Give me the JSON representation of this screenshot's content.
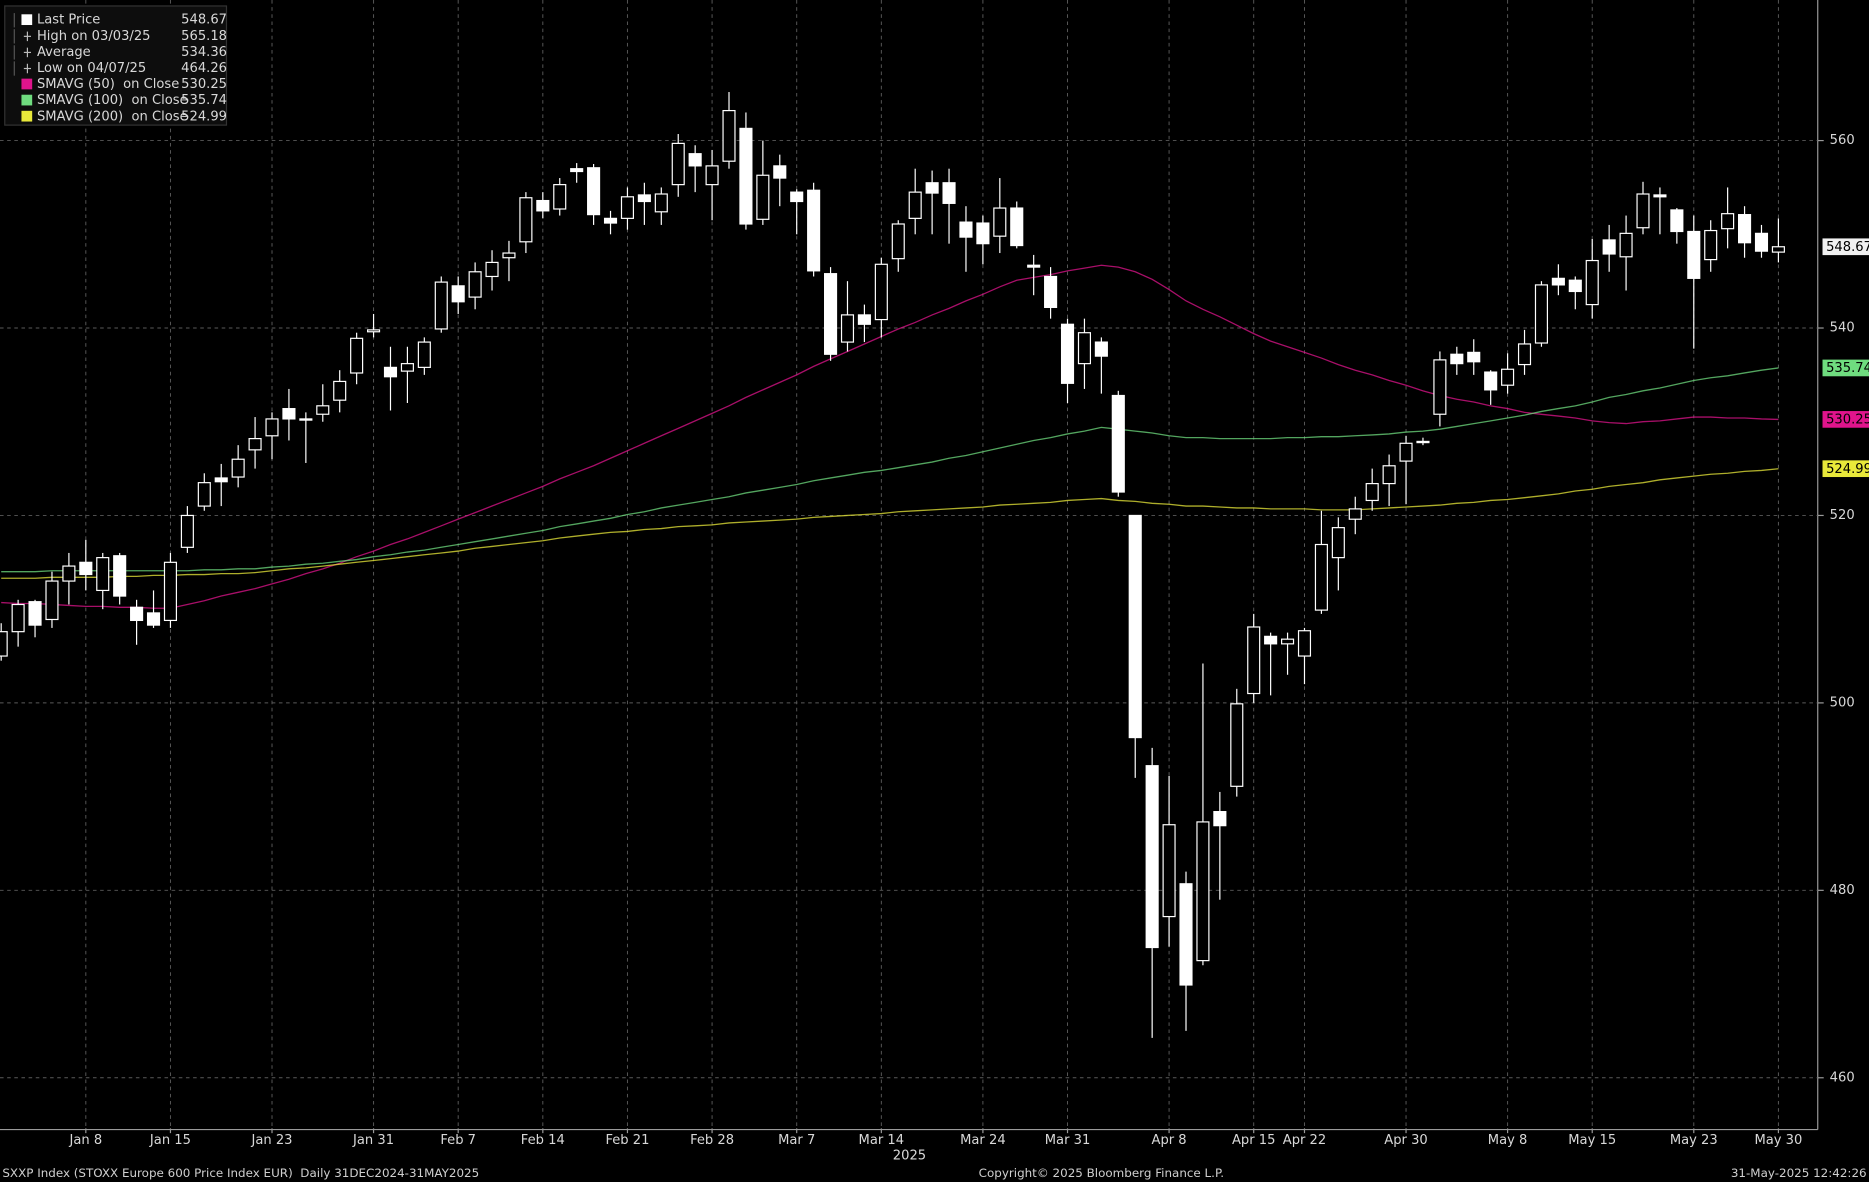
{
  "chart_data": {
    "type": "candlestick",
    "categories": [
      null,
      null,
      null,
      null,
      null,
      "Jan 8",
      null,
      null,
      null,
      null,
      "Jan 15",
      null,
      null,
      null,
      null,
      null,
      "Jan 23",
      null,
      null,
      null,
      null,
      null,
      "Jan 31",
      null,
      null,
      null,
      null,
      "Feb 7",
      null,
      null,
      null,
      null,
      "Feb 14",
      null,
      null,
      null,
      null,
      "Feb 21",
      null,
      null,
      null,
      null,
      "Feb 28",
      null,
      null,
      null,
      null,
      "Mar 7",
      null,
      null,
      null,
      null,
      "Mar 14",
      null,
      null,
      null,
      null,
      null,
      "Mar 24",
      null,
      null,
      null,
      null,
      "Mar 31",
      null,
      null,
      null,
      null,
      null,
      "Apr 8",
      null,
      null,
      null,
      null,
      "Apr 15",
      null,
      null,
      "Apr 22",
      null,
      null,
      null,
      null,
      null,
      "Apr 30",
      null,
      null,
      null,
      null,
      null,
      "May 8",
      null,
      null,
      null,
      null,
      "May 15",
      null,
      null,
      null,
      null,
      null,
      "May 23",
      null,
      null,
      null,
      null,
      "May 30"
    ],
    "open": [
      505.0,
      507.6,
      510.8,
      508.9,
      513.0,
      515.0,
      512.0,
      515.7,
      510.2,
      509.6,
      508.8,
      516.6,
      521.0,
      524.0,
      524.1,
      527.0,
      528.5,
      531.4,
      530.3,
      530.8,
      532.3,
      535.2,
      539.6,
      535.8,
      535.4,
      535.8,
      539.9,
      544.5,
      543.3,
      545.5,
      547.5,
      549.2,
      553.6,
      552.7,
      557.0,
      557.1,
      551.7,
      551.7,
      554.2,
      552.4,
      555.3,
      558.6,
      555.3,
      557.8,
      561.3,
      551.6,
      557.3,
      554.5,
      554.7,
      545.8,
      538.5,
      541.4,
      540.9,
      547.4,
      551.7,
      555.5,
      555.5,
      551.3,
      551.2,
      549.8,
      552.8,
      546.7,
      545.5,
      540.4,
      536.2,
      538.5,
      532.8,
      520.0,
      493.3,
      477.2,
      480.7,
      472.5,
      488.4,
      491.1,
      501.0,
      507.1,
      506.3,
      505.0,
      509.9,
      515.5,
      519.6,
      521.6,
      523.4,
      525.8,
      527.8,
      530.8,
      537.2,
      537.4,
      535.3,
      533.9,
      536.1,
      538.4,
      545.3,
      545.1,
      542.5,
      549.4,
      547.6,
      550.7,
      554.2,
      552.6,
      550.3,
      547.3,
      550.6,
      552.1,
      550.1,
      548.1
    ],
    "high": [
      508.5,
      511.0,
      511.0,
      514.0,
      516.0,
      517.4,
      516.0,
      516.0,
      511.0,
      512.0,
      516.0,
      521.0,
      524.5,
      525.5,
      527.5,
      530.5,
      531.0,
      533.5,
      531.0,
      534.0,
      535.5,
      539.5,
      541.5,
      538.0,
      538.0,
      539.0,
      545.5,
      545.5,
      547.0,
      548.3,
      549.3,
      554.5,
      554.5,
      556.0,
      557.6,
      557.5,
      552.5,
      555.0,
      555.5,
      555.0,
      560.7,
      559.5,
      559.0,
      565.18,
      563.0,
      560.0,
      558.5,
      554.8,
      555.5,
      546.5,
      545.0,
      542.5,
      547.5,
      551.5,
      557.0,
      556.8,
      557.0,
      553.0,
      552.0,
      556.0,
      553.5,
      547.8,
      546.5,
      541.0,
      541.0,
      539.0,
      533.3,
      520.0,
      495.2,
      492.2,
      482.0,
      504.2,
      490.5,
      501.5,
      509.5,
      507.5,
      507.5,
      508.0,
      520.5,
      519.8,
      522.0,
      525.0,
      526.5,
      528.5,
      528.3,
      537.5,
      538.0,
      538.8,
      535.5,
      537.3,
      539.8,
      545.0,
      546.8,
      545.5,
      549.5,
      551.0,
      552.0,
      555.6,
      555.0,
      552.8,
      552.0,
      551.5,
      555.0,
      553.0,
      551.0,
      551.7
    ],
    "low": [
      504.5,
      506.0,
      507.0,
      508.0,
      510.5,
      512.0,
      510.0,
      510.5,
      506.2,
      508.0,
      508.0,
      516.0,
      520.5,
      521.0,
      523.0,
      525.0,
      526.0,
      528.0,
      525.6,
      530.0,
      531.0,
      534.0,
      539.0,
      531.2,
      532.0,
      535.0,
      539.5,
      541.5,
      542.0,
      544.0,
      545.0,
      548.0,
      551.7,
      552.0,
      555.5,
      551.0,
      550.0,
      550.5,
      551.0,
      551.0,
      554.0,
      554.5,
      551.5,
      557.0,
      550.5,
      551.0,
      553.0,
      550.0,
      545.5,
      536.5,
      537.5,
      538.5,
      539.0,
      546.0,
      550.0,
      550.0,
      549.0,
      546.0,
      546.8,
      548.0,
      548.5,
      543.5,
      541.0,
      532.0,
      533.5,
      533.0,
      522.0,
      492.0,
      464.26,
      474.0,
      465.0,
      472.0,
      479.0,
      490.0,
      500.0,
      500.8,
      503.0,
      502.0,
      509.5,
      512.0,
      518.0,
      520.5,
      521.0,
      521.2,
      527.5,
      529.5,
      535.0,
      535.0,
      531.8,
      533.0,
      535.0,
      538.0,
      543.5,
      542.0,
      541.0,
      546.0,
      544.0,
      550.0,
      550.0,
      549.0,
      537.8,
      546.0,
      548.5,
      547.5,
      547.5,
      547.0
    ],
    "close": [
      507.6,
      510.5,
      508.3,
      513.0,
      514.6,
      513.7,
      515.5,
      511.4,
      508.8,
      508.3,
      515.0,
      520.0,
      523.5,
      523.6,
      526.0,
      528.2,
      530.3,
      530.3,
      530.2,
      531.7,
      534.3,
      538.9,
      539.8,
      534.8,
      536.2,
      538.5,
      544.9,
      542.8,
      546.0,
      547.0,
      548.0,
      553.9,
      552.5,
      555.3,
      556.7,
      552.1,
      551.2,
      554.0,
      553.5,
      554.3,
      559.7,
      557.3,
      557.3,
      563.2,
      551.1,
      556.3,
      556.0,
      553.5,
      546.1,
      537.2,
      541.4,
      540.4,
      546.8,
      551.1,
      554.5,
      554.4,
      553.3,
      549.7,
      549.0,
      552.8,
      548.8,
      546.5,
      542.2,
      534.1,
      539.5,
      537.0,
      522.5,
      496.3,
      473.9,
      487.0,
      469.9,
      487.3,
      486.9,
      499.9,
      508.1,
      506.3,
      506.8,
      507.7,
      516.9,
      518.7,
      520.7,
      523.4,
      525.3,
      527.7,
      527.9,
      536.6,
      536.2,
      536.4,
      533.4,
      535.6,
      538.3,
      544.6,
      544.6,
      543.9,
      547.2,
      547.9,
      550.1,
      554.3,
      554.0,
      550.3,
      545.3,
      550.4,
      552.2,
      549.1,
      548.2,
      548.67
    ],
    "candle_color": "#ffffff",
    "series": [
      {
        "name": "SMAVG (50)  on Close",
        "color": "#e0148c",
        "values": [
          510.7,
          510.6,
          510.6,
          510.5,
          510.4,
          510.3,
          510.3,
          510.2,
          510.2,
          510.1,
          510.1,
          510.5,
          510.9,
          511.4,
          511.8,
          512.2,
          512.7,
          513.2,
          513.8,
          514.3,
          514.9,
          515.6,
          516.2,
          516.9,
          517.5,
          518.2,
          518.9,
          519.6,
          520.3,
          521.0,
          521.7,
          522.4,
          523.1,
          523.9,
          524.6,
          525.3,
          526.1,
          526.9,
          527.7,
          528.5,
          529.3,
          530.1,
          530.9,
          531.7,
          532.6,
          533.4,
          534.2,
          535.0,
          535.9,
          536.7,
          537.5,
          538.3,
          539.1,
          539.9,
          540.6,
          541.4,
          542.1,
          542.9,
          543.6,
          544.4,
          545.1,
          545.4,
          545.7,
          546.1,
          546.4,
          546.7,
          546.5,
          546.0,
          545.2,
          544.1,
          542.9,
          542.0,
          541.2,
          540.3,
          539.4,
          538.6,
          538.0,
          537.4,
          536.8,
          536.1,
          535.5,
          535.0,
          534.4,
          533.9,
          533.3,
          532.8,
          532.4,
          532.1,
          531.7,
          531.4,
          531.0,
          530.8,
          530.6,
          530.4,
          530.1,
          529.9,
          529.8,
          530.0,
          530.1,
          530.3,
          530.5,
          530.5,
          530.4,
          530.4,
          530.3,
          530.25
        ]
      },
      {
        "name": "SMAVG (100)  on Close",
        "color": "#6fdc7f",
        "values": [
          514.0,
          514.0,
          514.0,
          514.1,
          514.1,
          514.1,
          514.1,
          514.1,
          514.1,
          514.1,
          514.1,
          514.1,
          514.2,
          514.2,
          514.3,
          514.3,
          514.5,
          514.6,
          514.8,
          514.9,
          515.1,
          515.3,
          515.6,
          515.8,
          516.1,
          516.3,
          516.6,
          516.9,
          517.2,
          517.5,
          517.8,
          518.1,
          518.4,
          518.8,
          519.1,
          519.4,
          519.7,
          520.1,
          520.4,
          520.8,
          521.1,
          521.4,
          521.7,
          522.0,
          522.4,
          522.7,
          523.0,
          523.3,
          523.7,
          524.0,
          524.3,
          524.6,
          524.8,
          525.1,
          525.4,
          525.7,
          526.1,
          526.4,
          526.8,
          527.2,
          527.6,
          528.0,
          528.3,
          528.7,
          529.0,
          529.4,
          529.2,
          529.0,
          528.8,
          528.5,
          528.3,
          528.3,
          528.2,
          528.2,
          528.2,
          528.2,
          528.3,
          528.3,
          528.4,
          528.4,
          528.5,
          528.6,
          528.7,
          528.9,
          529.0,
          529.2,
          529.5,
          529.8,
          530.1,
          530.4,
          530.7,
          531.1,
          531.4,
          531.7,
          532.1,
          532.6,
          532.9,
          533.3,
          533.6,
          534.0,
          534.4,
          534.7,
          534.9,
          535.2,
          535.5,
          535.74
        ]
      },
      {
        "name": "SMAVG (200)  on Close",
        "color": "#e8e83a",
        "values": [
          513.3,
          513.3,
          513.3,
          513.4,
          513.4,
          513.4,
          513.4,
          513.5,
          513.5,
          513.6,
          513.6,
          513.7,
          513.7,
          513.8,
          513.8,
          513.9,
          514.1,
          514.3,
          514.4,
          514.6,
          514.8,
          515.0,
          515.2,
          515.4,
          515.6,
          515.8,
          516.0,
          516.2,
          516.5,
          516.7,
          516.9,
          517.1,
          517.3,
          517.6,
          517.8,
          518.0,
          518.2,
          518.3,
          518.5,
          518.6,
          518.8,
          518.9,
          519.0,
          519.2,
          519.3,
          519.4,
          519.5,
          519.6,
          519.8,
          519.9,
          520.0,
          520.1,
          520.2,
          520.4,
          520.5,
          520.6,
          520.7,
          520.8,
          520.9,
          521.1,
          521.2,
          521.3,
          521.4,
          521.6,
          521.7,
          521.8,
          521.6,
          521.5,
          521.3,
          521.2,
          521.0,
          521.0,
          520.9,
          520.8,
          520.8,
          520.7,
          520.7,
          520.7,
          520.6,
          520.6,
          520.6,
          520.7,
          520.8,
          520.9,
          521.0,
          521.1,
          521.3,
          521.4,
          521.6,
          521.7,
          521.9,
          522.1,
          522.3,
          522.6,
          522.8,
          523.1,
          523.3,
          523.5,
          523.8,
          524.0,
          524.2,
          524.4,
          524.5,
          524.7,
          524.8,
          524.99
        ]
      }
    ],
    "ylim": [
      454.6,
      575.0
    ],
    "yticks": [
      460,
      480,
      500,
      520,
      540,
      560
    ],
    "grid": true,
    "stats": [
      {
        "label": "Last Price",
        "value": 548.67
      },
      {
        "label": "High on 03/03/25",
        "value": 565.18
      },
      {
        "label": "Average",
        "value": 534.36
      },
      {
        "label": "Low on 04/07/25",
        "value": 464.26
      }
    ],
    "year_label": "2025"
  },
  "footer": {
    "left": "SXXP Index (STOXX Europe 600 Price Index EUR)  Daily 31DEC2024-31MAY2025",
    "center": "Copyright© 2025 Bloomberg Finance L.P.",
    "right": "31-May-2025 12:42:26"
  }
}
